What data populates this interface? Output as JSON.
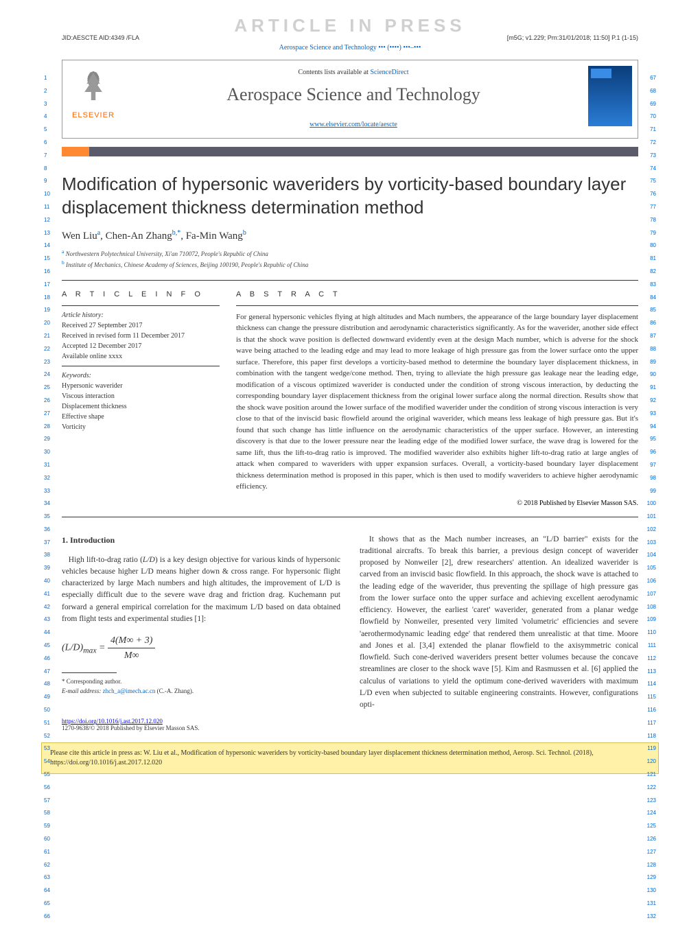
{
  "meta": {
    "watermark": "ARTICLE IN PRESS",
    "jid_left": "JID:AESCTE   AID:4349 /FLA",
    "jid_right": "[m5G; v1.229; Prn:31/01/2018; 11:50] P.1 (1-15)",
    "running_head": "Aerospace Science and Technology ••• (••••) •••–•••"
  },
  "journal_box": {
    "elsevier": "ELSEVIER",
    "contents_prefix": "Contents lists available at ",
    "contents_link": "ScienceDirect",
    "journal_name": "Aerospace Science and Technology",
    "url": "www.elsevier.com/locate/aescte"
  },
  "title": "Modification of hypersonic waveriders by vorticity-based boundary layer displacement thickness determination method",
  "authors_html": "Wen Liu",
  "author_list": [
    {
      "name": "Wen Liu",
      "sup": "a"
    },
    {
      "name": "Chen-An Zhang",
      "sup": "b,*"
    },
    {
      "name": "Fa-Min Wang",
      "sup": "b"
    }
  ],
  "affiliations": [
    {
      "sup": "a",
      "text": "Northwestern Polytechnical University, Xi'an 710072, People's Republic of China"
    },
    {
      "sup": "b",
      "text": "Institute of Mechanics, Chinese Academy of Sciences, Beijing 100190, People's Republic of China"
    }
  ],
  "article_info_heading": "A R T I C L E   I N F O",
  "abstract_heading": "A B S T R A C T",
  "history": {
    "label": "Article history:",
    "received": "Received 27 September 2017",
    "revised": "Received in revised form 11 December 2017",
    "accepted": "Accepted 12 December 2017",
    "online": "Available online xxxx"
  },
  "keywords": {
    "label": "Keywords:",
    "items": [
      "Hypersonic waverider",
      "Viscous interaction",
      "Displacement thickness",
      "Effective shape",
      "Vorticity"
    ]
  },
  "abstract": "For general hypersonic vehicles flying at high altitudes and Mach numbers, the appearance of the large boundary layer displacement thickness can change the pressure distribution and aerodynamic characteristics significantly. As for the waverider, another side effect is that the shock wave position is deflected downward evidently even at the design Mach number, which is adverse for the shock wave being attached to the leading edge and may lead to more leakage of high pressure gas from the lower surface onto the upper surface. Therefore, this paper first develops a vorticity-based method to determine the boundary layer displacement thickness, in combination with the tangent wedge/cone method. Then, trying to alleviate the high pressure gas leakage near the leading edge, modification of a viscous optimized waverider is conducted under the condition of strong viscous interaction, by deducting the corresponding boundary layer displacement thickness from the original lower surface along the normal direction. Results show that the shock wave position around the lower surface of the modified waverider under the condition of strong viscous interaction is very close to that of the inviscid basic flowfield around the original waverider, which means less leakage of high pressure gas. But it's found that such change has little influence on the aerodynamic characteristics of the upper surface. However, an interesting discovery is that due to the lower pressure near the leading edge of the modified lower surface, the wave drag is lowered for the same lift, thus the lift-to-drag ratio is improved. The modified waverider also exhibits higher lift-to-drag ratio at large angles of attack when compared to waveriders with upper expansion surfaces. Overall, a vorticity-based boundary layer displacement thickness determination method is proposed in this paper, which is then used to modify waveriders to achieve higher aerodynamic efficiency.",
  "abstract_copyright": "© 2018 Published by Elsevier Masson SAS.",
  "section1": {
    "heading": "1. Introduction",
    "para1_pre": "High lift-to-drag ratio (",
    "para1_LD": "L/D",
    "para1_post": ") is a key design objective for various kinds of hypersonic vehicles because higher L/D means higher down & cross range. For hypersonic flight characterized by large Mach numbers and high altitudes, the improvement of L/D is especially difficult due to the severe wave drag and friction drag. Kuchemann put forward a general empirical correlation for the maximum L/D based on data obtained from flight tests and experimental studies [1]:",
    "equation_lhs": "(L/D)",
    "equation_sub": "max",
    "equation_eq": " = ",
    "equation_num": "4(M∞ + 3)",
    "equation_den": "M∞",
    "para2": "It shows that as the Mach number increases, an \"L/D barrier\" exists for the traditional aircrafts. To break this barrier, a previous design concept of waverider proposed by Nonweiler [2], drew researchers' attention. An idealized waverider is carved from an inviscid basic flowfield. In this approach, the shock wave is attached to the leading edge of the waverider, thus preventing the spillage of high pressure gas from the lower surface onto the upper surface and achieving excellent aerodynamic efficiency. However, the earliest 'caret' waverider, generated from a planar wedge flowfield by Nonweiler, presented very limited 'volumetric' efficiencies and severe 'aerothermodynamic leading edge' that rendered them unrealistic at that time. Moore and Jones et al. [3,4] extended the planar flowfield to the axisymmetric conical flowfield. Such cone-derived waveriders present better volumes because the concave streamlines are closer to the shock wave [5]. Kim and Rasmussen et al. [6] applied the calculus of variations to yield the optimum cone-derived waveriders with maximum L/D even when subjected to suitable engineering constraints. However, configurations opti-"
  },
  "footnotes": {
    "corresponding": "* Corresponding author.",
    "email_label": "E-mail address: ",
    "email": "zhch_a@imech.ac.cn",
    "email_name": " (C.-A. Zhang)."
  },
  "doi": "https://doi.org/10.1016/j.ast.2017.12.020",
  "copyright_line": "1270-9638/© 2018 Published by Elsevier Masson SAS.",
  "cite_box": "Please cite this article in press as: W. Liu et al., Modification of hypersonic waveriders by vorticity-based boundary layer displacement thickness determination method, Aerosp. Sci. Technol. (2018), https://doi.org/10.1016/j.ast.2017.12.020",
  "line_numbers": {
    "left_start": 1,
    "left_end": 66,
    "right_start": 67,
    "right_end": 132
  },
  "colors": {
    "link": "#0066cc",
    "orange": "#ff8833",
    "watermark": "#d0d0d0",
    "citebox_bg": "#fff2a8"
  }
}
